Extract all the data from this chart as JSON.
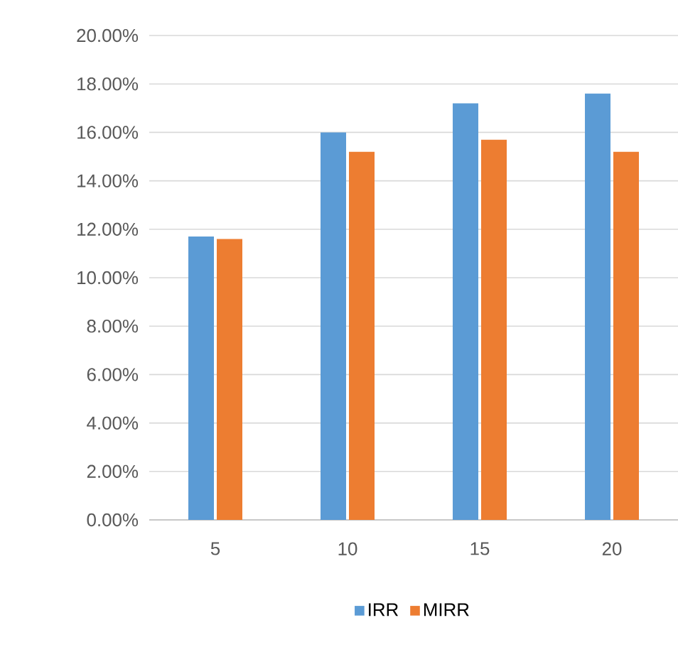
{
  "chart_data": {
    "type": "bar",
    "categories": [
      "5",
      "10",
      "15",
      "20"
    ],
    "series": [
      {
        "name": "IRR",
        "color": "#5b9bd5",
        "values": [
          11.7,
          16.0,
          17.2,
          17.6
        ]
      },
      {
        "name": "MIRR",
        "color": "#ed7d31",
        "values": [
          11.6,
          15.2,
          15.7,
          15.2
        ]
      }
    ],
    "ylim": [
      0,
      20
    ],
    "yticks": [
      {
        "value": 0,
        "label": "0.00%"
      },
      {
        "value": 2,
        "label": "2.00%"
      },
      {
        "value": 4,
        "label": "4.00%"
      },
      {
        "value": 6,
        "label": "6.00%"
      },
      {
        "value": 8,
        "label": "8.00%"
      },
      {
        "value": 10,
        "label": "10.00%"
      },
      {
        "value": 12,
        "label": "12.00%"
      },
      {
        "value": 14,
        "label": "14.00%"
      },
      {
        "value": 16,
        "label": "16.00%"
      },
      {
        "value": 18,
        "label": "18.00%"
      },
      {
        "value": 20,
        "label": "20.00%"
      }
    ],
    "grid": "y",
    "legend": "bottom"
  }
}
